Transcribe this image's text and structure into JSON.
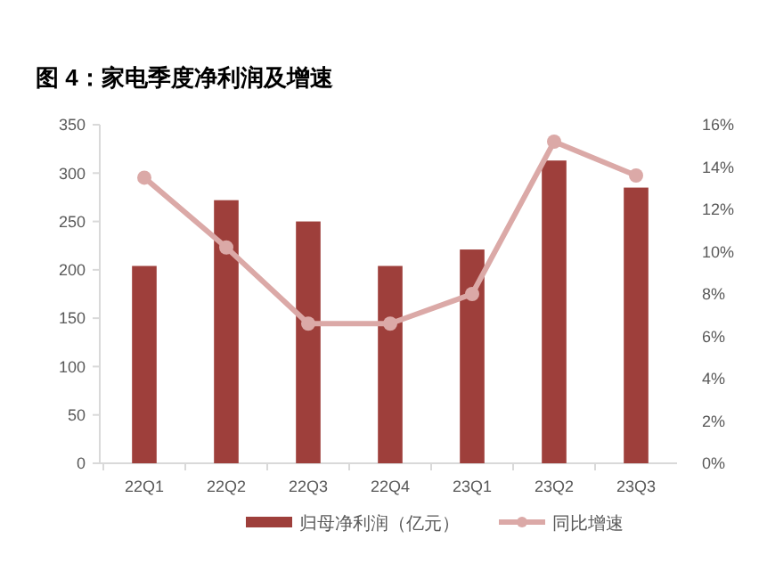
{
  "chart_data": {
    "type": "bar",
    "title": "图 4：家电季度净利润及增速",
    "categories": [
      "22Q1",
      "22Q2",
      "22Q3",
      "22Q4",
      "23Q1",
      "23Q2",
      "23Q3"
    ],
    "series": [
      {
        "name": "归母净利润（亿元）",
        "color": "#9e3f3b",
        "values": [
          204,
          272,
          250,
          204,
          221,
          313,
          285
        ]
      },
      {
        "name": "同比增速",
        "type": "line",
        "axis": "y2",
        "color": "#dba9a7",
        "values": [
          13.5,
          10.2,
          6.6,
          6.6,
          8.0,
          15.2,
          13.6
        ]
      }
    ],
    "ylim": [
      0,
      350
    ],
    "yticks": [
      0,
      50,
      100,
      150,
      200,
      250,
      300,
      350
    ],
    "y2lim": [
      0,
      16
    ],
    "y2ticks": [
      {
        "value": 0,
        "label": "0%"
      },
      {
        "value": 2,
        "label": "2%"
      },
      {
        "value": 4,
        "label": "4%"
      },
      {
        "value": 6,
        "label": "6%"
      },
      {
        "value": 8,
        "label": "8%"
      },
      {
        "value": 10,
        "label": "10%"
      },
      {
        "value": 12,
        "label": "12%"
      },
      {
        "value": 14,
        "label": "14%"
      },
      {
        "value": 16,
        "label": "16%"
      }
    ],
    "marker": "circle",
    "legend": "bottom",
    "grid": false
  }
}
